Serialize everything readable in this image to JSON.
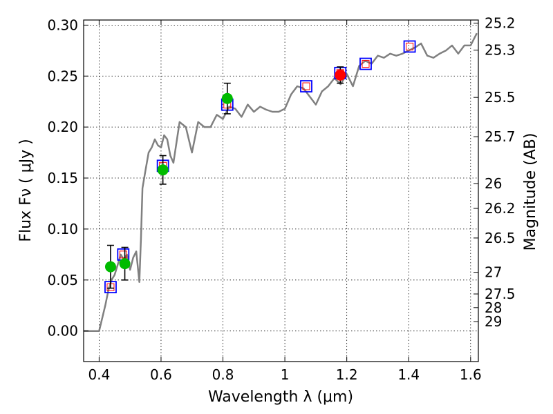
{
  "chart_data": {
    "type": "scatter",
    "xlabel": "Wavelength  λ (μm)",
    "ylabel": "Flux  Fν  ( μJy )",
    "y2label": "Magnitude (AB)",
    "xlim": [
      0.35,
      1.625
    ],
    "ylim": [
      -0.03,
      0.305
    ],
    "grid": true,
    "x_ticks": [
      0.4,
      0.6,
      0.8,
      1.0,
      1.2,
      1.4,
      1.6
    ],
    "x_tick_labels": [
      "0.4",
      "0.6",
      "0.8",
      "1",
      "1.2",
      "1.4",
      "1.6"
    ],
    "y_ticks": [
      0.0,
      0.05,
      0.1,
      0.15,
      0.2,
      0.25,
      0.3
    ],
    "y_tick_labels": [
      "0.00",
      "0.05",
      "0.10",
      "0.15",
      "0.20",
      "0.25",
      "0.30"
    ],
    "mag_ticks": [
      "25.2",
      "25.3",
      "25.5",
      "25.7",
      "26",
      "26.2",
      "26.5",
      "27",
      "27.5",
      "28",
      "29"
    ],
    "colors": {
      "spectrum": "#808080",
      "model_box": "#0000ff",
      "model_inner": "#ff0000",
      "obs_green": "#00bb00",
      "obs_red": "#ff0000",
      "errorbar": "#000000"
    },
    "spectrum": {
      "x": [
        0.35,
        0.4,
        0.42,
        0.43,
        0.44,
        0.45,
        0.46,
        0.47,
        0.48,
        0.49,
        0.5,
        0.51,
        0.52,
        0.53,
        0.535,
        0.54,
        0.55,
        0.56,
        0.57,
        0.58,
        0.59,
        0.6,
        0.61,
        0.62,
        0.63,
        0.64,
        0.66,
        0.68,
        0.7,
        0.72,
        0.74,
        0.76,
        0.78,
        0.8,
        0.82,
        0.84,
        0.86,
        0.88,
        0.9,
        0.92,
        0.94,
        0.96,
        0.98,
        1.0,
        1.02,
        1.04,
        1.06,
        1.08,
        1.1,
        1.12,
        1.14,
        1.16,
        1.18,
        1.2,
        1.22,
        1.24,
        1.26,
        1.28,
        1.3,
        1.32,
        1.34,
        1.36,
        1.38,
        1.4,
        1.42,
        1.44,
        1.46,
        1.48,
        1.5,
        1.52,
        1.54,
        1.56,
        1.58,
        1.6,
        1.62
      ],
      "y": [
        0.0,
        0.0,
        0.025,
        0.04,
        0.05,
        0.055,
        0.065,
        0.075,
        0.07,
        0.075,
        0.06,
        0.072,
        0.078,
        0.048,
        0.09,
        0.14,
        0.158,
        0.175,
        0.18,
        0.188,
        0.182,
        0.18,
        0.192,
        0.188,
        0.172,
        0.165,
        0.205,
        0.2,
        0.175,
        0.205,
        0.2,
        0.2,
        0.212,
        0.208,
        0.22,
        0.218,
        0.21,
        0.222,
        0.215,
        0.22,
        0.217,
        0.215,
        0.215,
        0.218,
        0.232,
        0.24,
        0.238,
        0.23,
        0.222,
        0.235,
        0.24,
        0.248,
        0.242,
        0.252,
        0.24,
        0.26,
        0.265,
        0.262,
        0.27,
        0.268,
        0.272,
        0.27,
        0.272,
        0.275,
        0.278,
        0.282,
        0.27,
        0.268,
        0.272,
        0.275,
        0.28,
        0.272,
        0.28,
        0.28,
        0.292
      ]
    },
    "model_points": {
      "x": [
        0.437,
        0.478,
        0.606,
        0.814,
        1.069,
        1.179,
        1.261,
        1.403
      ],
      "y": [
        0.043,
        0.075,
        0.162,
        0.222,
        0.24,
        0.253,
        0.262,
        0.279
      ]
    },
    "observed_green": {
      "x": [
        0.437,
        0.483,
        0.606,
        0.814
      ],
      "y": [
        0.063,
        0.066,
        0.158,
        0.228
      ],
      "err": [
        0.021,
        0.016,
        0.014,
        0.015
      ]
    },
    "observed_red": {
      "x": [
        1.179
      ],
      "y": [
        0.251
      ],
      "err": [
        0.008
      ]
    }
  }
}
